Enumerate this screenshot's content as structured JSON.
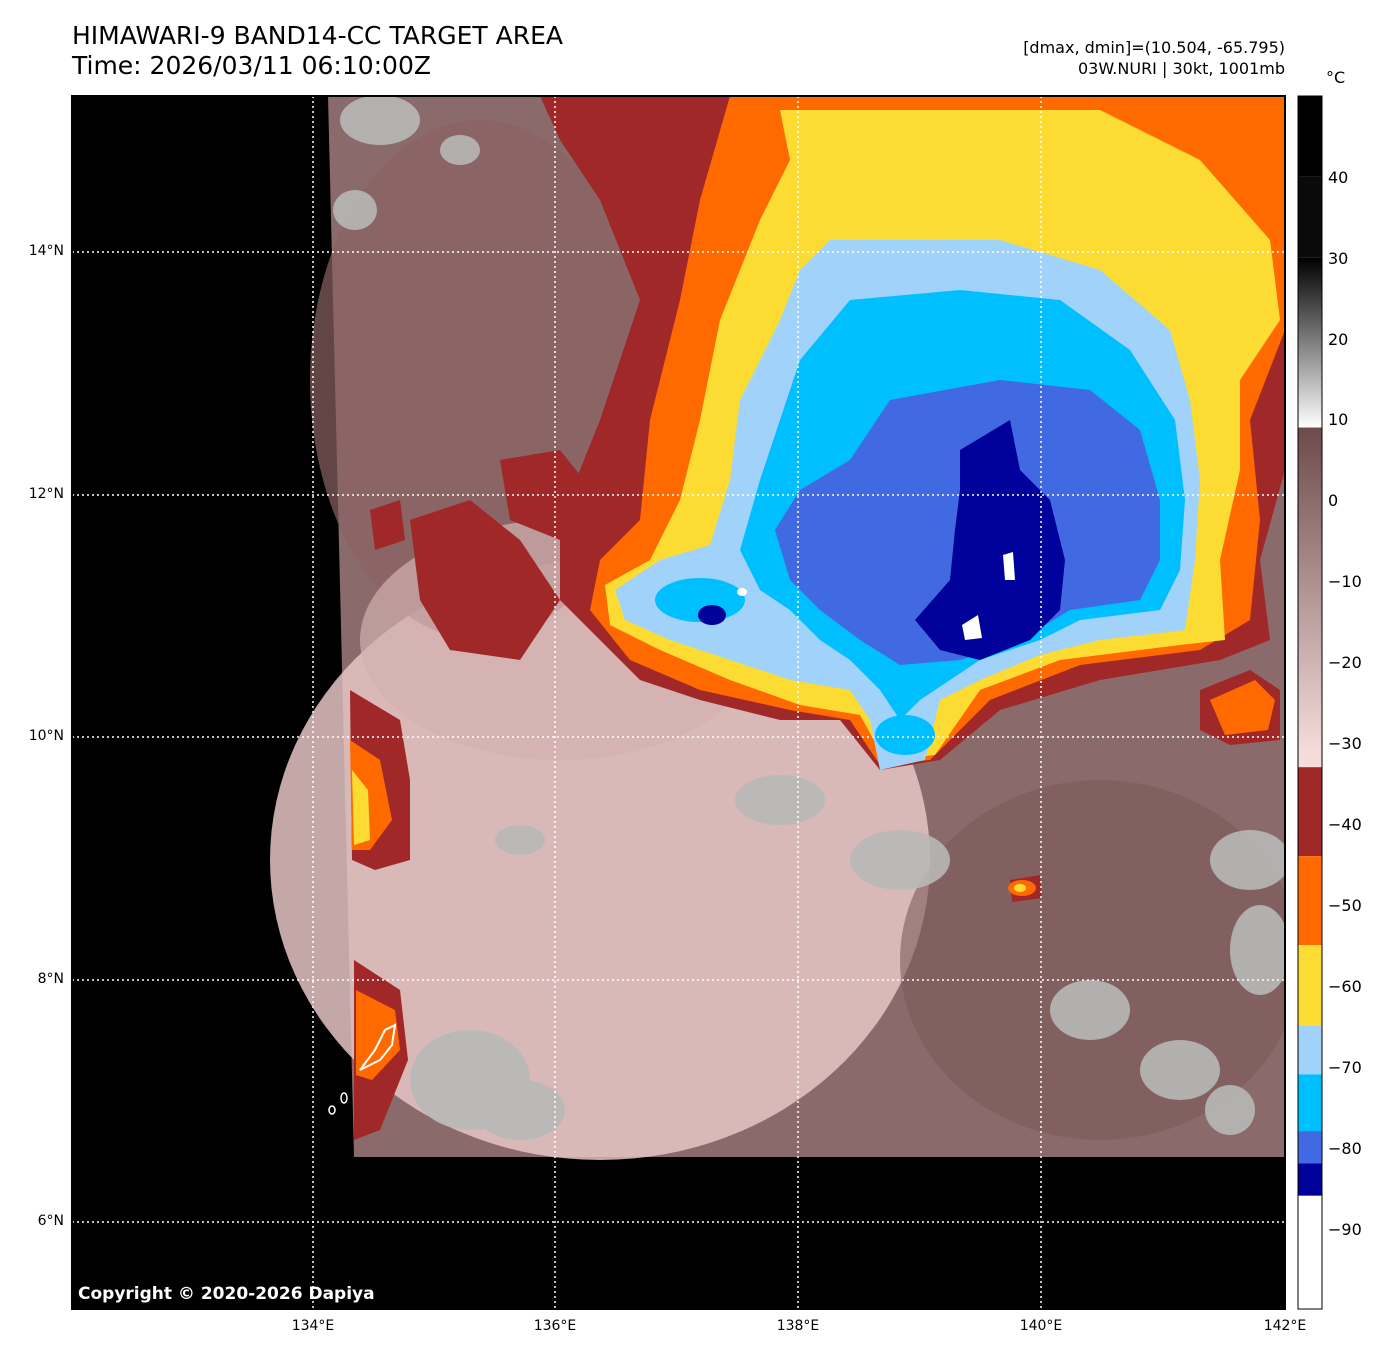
{
  "header": {
    "title": "HIMAWARI-9 BAND14-CC TARGET AREA",
    "time": "Time: 2026/03/11 06:10:00Z",
    "range": "[dmax, dmin]=(10.504, -65.795)",
    "storm": "03W.NURI | 30kt, 1001mb"
  },
  "map": {
    "lat_labels": [
      "14°N",
      "12°N",
      "10°N",
      "8°N",
      "6°N"
    ],
    "lon_labels": [
      "134°E",
      "136°E",
      "138°E",
      "140°E",
      "142°E"
    ],
    "copyright": "Copyright © 2020-2026 Dapiya"
  },
  "colorbar": {
    "unit": "°C",
    "ticks": [
      "40",
      "30",
      "20",
      "10",
      "0",
      "−10",
      "−20",
      "−30",
      "−40",
      "−50",
      "−60",
      "−70",
      "−80",
      "−90"
    ],
    "range": [
      -100,
      50
    ],
    "segments": [
      {
        "from": 50,
        "to": 40,
        "color": "#000000"
      },
      {
        "from": 40,
        "to": 30,
        "color": "#0a0a0a"
      },
      {
        "from": 30,
        "to": 20,
        "color": "#555555"
      },
      {
        "from": 20,
        "to": 9,
        "color": "#c8c8c8"
      },
      {
        "from": 9,
        "to": -30,
        "color": "#a07878"
      },
      {
        "from": -30,
        "to": -33,
        "color": "#f4dcdc"
      },
      {
        "from": -33,
        "to": -44,
        "color": "#a02828"
      },
      {
        "from": -44,
        "to": -55,
        "color": "#ff6a00"
      },
      {
        "from": -55,
        "to": -65,
        "color": "#fcdc32"
      },
      {
        "from": -65,
        "to": -71,
        "color": "#a0d2fa"
      },
      {
        "from": -71,
        "to": -78,
        "color": "#00bfff"
      },
      {
        "from": -78,
        "to": -82,
        "color": "#4169e1"
      },
      {
        "from": -82,
        "to": -86,
        "color": "#00009a"
      },
      {
        "from": -86,
        "to": -100,
        "color": "#ffffff"
      }
    ]
  },
  "colors": {
    "background": "#000000",
    "brown": "#7e5a5a",
    "pink": "#e8c8c8",
    "gray_cloud": "#b4b4b4",
    "red": "#a02828",
    "orange": "#ff6a00",
    "yellow": "#fcdc32",
    "light_blue": "#a0d2fa",
    "cyan": "#00bfff",
    "blue": "#4169e1",
    "navy": "#00009a",
    "white": "#ffffff",
    "grid": "#ffffff"
  }
}
